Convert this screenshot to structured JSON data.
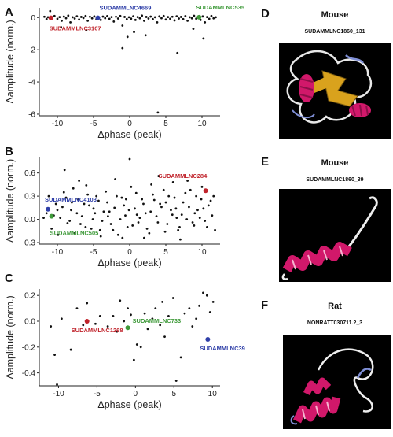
{
  "panels": {
    "A": "A",
    "B": "B",
    "C": "C",
    "D": "D",
    "E": "E",
    "F": "F"
  },
  "colors": {
    "red": "#c0232b",
    "blue": "#2f3fa8",
    "green": "#3f9a3a",
    "point": "#111111"
  },
  "chart_data": [
    {
      "type": "scatter",
      "panel": "A",
      "xlabel": "Δphase (peak)",
      "ylabel": "Δamplitude (norm.)",
      "xlim": [
        -12.5,
        12.5
      ],
      "ylim": [
        -6.1,
        0.6
      ],
      "xticks": [
        "-10",
        "-5",
        "0",
        "5",
        "10"
      ],
      "yticks": [
        "0",
        "-2",
        "-4",
        "-6"
      ],
      "points": [
        [
          -11.8,
          0.05
        ],
        [
          -11.5,
          -0.1
        ],
        [
          -11.3,
          0.02
        ],
        [
          -11.0,
          0.4
        ],
        [
          -10.7,
          -0.05
        ],
        [
          -10.4,
          0.1
        ],
        [
          -10.0,
          -0.08
        ],
        [
          -9.7,
          0.03
        ],
        [
          -9.4,
          -0.2
        ],
        [
          -9.1,
          0.06
        ],
        [
          -8.8,
          -0.04
        ],
        [
          -8.5,
          0.12
        ],
        [
          -8.2,
          -0.3
        ],
        [
          -7.9,
          0.02
        ],
        [
          -7.6,
          -0.06
        ],
        [
          -7.3,
          0.08
        ],
        [
          -7.0,
          -0.12
        ],
        [
          -6.7,
          0.04
        ],
        [
          -6.4,
          -0.03
        ],
        [
          -6.1,
          0.1
        ],
        [
          -5.8,
          -0.2
        ],
        [
          -5.5,
          0.05
        ],
        [
          -5.2,
          -0.05
        ],
        [
          -4.9,
          0.07
        ],
        [
          -4.6,
          -0.1
        ],
        [
          -4.3,
          0.02
        ],
        [
          -4.0,
          -0.15
        ],
        [
          -3.7,
          0.06
        ],
        [
          -3.4,
          -0.04
        ],
        [
          -3.1,
          0.09
        ],
        [
          -2.8,
          -0.08
        ],
        [
          -2.5,
          0.03
        ],
        [
          -2.2,
          -0.25
        ],
        [
          -1.9,
          0.05
        ],
        [
          -1.6,
          -0.06
        ],
        [
          -1.3,
          0.1
        ],
        [
          -1.0,
          -0.5
        ],
        [
          -0.7,
          0.04
        ],
        [
          -0.4,
          -0.1
        ],
        [
          -0.1,
          0.02
        ],
        [
          0.2,
          -0.07
        ],
        [
          0.5,
          0.08
        ],
        [
          0.8,
          -0.15
        ],
        [
          1.1,
          0.03
        ],
        [
          1.4,
          -0.05
        ],
        [
          1.7,
          0.12
        ],
        [
          2.0,
          -0.2
        ],
        [
          2.3,
          0.04
        ],
        [
          2.6,
          -0.06
        ],
        [
          2.9,
          0.06
        ],
        [
          3.2,
          -0.1
        ],
        [
          3.5,
          0.02
        ],
        [
          3.8,
          -0.3
        ],
        [
          4.1,
          0.07
        ],
        [
          4.4,
          -0.04
        ],
        [
          4.7,
          0.1
        ],
        [
          5.0,
          -0.12
        ],
        [
          5.3,
          0.03
        ],
        [
          5.6,
          -0.08
        ],
        [
          5.9,
          0.05
        ],
        [
          6.2,
          -0.18
        ],
        [
          6.5,
          0.08
        ],
        [
          6.8,
          -0.06
        ],
        [
          7.1,
          0.04
        ],
        [
          7.4,
          -0.1
        ],
        [
          7.7,
          0.09
        ],
        [
          8.0,
          -0.2
        ],
        [
          8.3,
          0.02
        ],
        [
          8.6,
          -0.05
        ],
        [
          8.9,
          0.11
        ],
        [
          9.2,
          -0.07
        ],
        [
          9.5,
          0.05
        ],
        [
          9.8,
          -0.15
        ],
        [
          10.1,
          0.07
        ],
        [
          10.4,
          -0.3
        ],
        [
          10.7,
          0.03
        ],
        [
          11.0,
          -0.08
        ],
        [
          11.3,
          0.1
        ],
        [
          11.6,
          -0.05
        ],
        [
          11.9,
          0.02
        ],
        [
          -1.0,
          -1.9
        ],
        [
          -0.3,
          -1.2
        ],
        [
          0.6,
          -0.9
        ],
        [
          3.9,
          -5.9
        ],
        [
          6.6,
          -2.2
        ],
        [
          8.8,
          -0.7
        ],
        [
          -6.0,
          -0.8
        ],
        [
          -9.5,
          -0.6
        ],
        [
          2.2,
          -1.1
        ],
        [
          10.2,
          -1.3
        ]
      ],
      "highlights": [
        {
          "label": "SUDAMMLNC3107",
          "x": -10.9,
          "y": -0.02,
          "color": "red"
        },
        {
          "label": "SUDAMMLNC4669",
          "x": -4.4,
          "y": -0.02,
          "color": "blue"
        },
        {
          "label": "SUDAMMLNC535",
          "x": 9.6,
          "y": 0.02,
          "color": "green"
        }
      ]
    },
    {
      "type": "scatter",
      "panel": "B",
      "xlabel": "Δphase (peak)",
      "ylabel": "Δamplitude (norm.)",
      "xlim": [
        -12.5,
        12.5
      ],
      "ylim": [
        -0.32,
        0.8
      ],
      "xticks": [
        "-10",
        "-5",
        "0",
        "5",
        "10"
      ],
      "yticks": [
        "0.6",
        "0.3",
        "0.0",
        "-0.3"
      ],
      "points": [
        [
          -11.5,
          0.08
        ],
        [
          -10.8,
          -0.12
        ],
        [
          -10.2,
          0.2
        ],
        [
          -9.6,
          0.02
        ],
        [
          -9.1,
          0.35
        ],
        [
          -8.6,
          -0.05
        ],
        [
          -8.1,
          0.12
        ],
        [
          -7.6,
          -0.18
        ],
        [
          -7.1,
          0.26
        ],
        [
          -6.6,
          0.04
        ],
        [
          -6.1,
          -0.1
        ],
        [
          -5.6,
          0.18
        ],
        [
          -5.1,
          0.0
        ],
        [
          -4.6,
          0.3
        ],
        [
          -4.1,
          -0.14
        ],
        [
          -3.6,
          0.1
        ],
        [
          -3.1,
          0.22
        ],
        [
          -2.6,
          -0.06
        ],
        [
          -2.1,
          0.15
        ],
        [
          -1.6,
          -0.2
        ],
        [
          -1.1,
          0.28
        ],
        [
          -0.6,
          0.05
        ],
        [
          -0.1,
          0.12
        ],
        [
          0.4,
          -0.08
        ],
        [
          0.9,
          0.34
        ],
        [
          1.4,
          0.02
        ],
        [
          1.9,
          0.2
        ],
        [
          2.4,
          -0.12
        ],
        [
          2.9,
          0.1
        ],
        [
          3.4,
          0.25
        ],
        [
          3.9,
          -0.04
        ],
        [
          4.4,
          0.16
        ],
        [
          4.9,
          -0.16
        ],
        [
          5.4,
          0.3
        ],
        [
          5.9,
          0.06
        ],
        [
          6.4,
          0.14
        ],
        [
          6.9,
          -0.1
        ],
        [
          7.4,
          0.22
        ],
        [
          7.9,
          0.0
        ],
        [
          8.4,
          0.38
        ],
        [
          8.9,
          -0.08
        ],
        [
          9.4,
          0.12
        ],
        [
          9.9,
          0.26
        ],
        [
          10.4,
          -0.02
        ],
        [
          10.9,
          0.18
        ],
        [
          11.4,
          0.05
        ],
        [
          11.8,
          -0.14
        ],
        [
          -11.2,
          0.3
        ],
        [
          -10.5,
          0.05
        ],
        [
          -9.9,
          -0.2
        ],
        [
          -9.3,
          0.16
        ],
        [
          -8.8,
          0.28
        ],
        [
          -8.3,
          -0.02
        ],
        [
          -7.8,
          0.4
        ],
        [
          -7.3,
          0.08
        ],
        [
          -6.8,
          -0.06
        ],
        [
          -6.3,
          0.2
        ],
        [
          -5.8,
          0.32
        ],
        [
          -5.3,
          -0.12
        ],
        [
          -4.8,
          0.08
        ],
        [
          -4.3,
          0.24
        ],
        [
          -3.8,
          -0.02
        ],
        [
          -3.3,
          0.36
        ],
        [
          -2.8,
          0.1
        ],
        [
          -2.3,
          -0.14
        ],
        [
          -1.8,
          0.3
        ],
        [
          -1.3,
          0.0
        ],
        [
          -0.8,
          0.18
        ],
        [
          -0.3,
          -0.1
        ],
        [
          0.2,
          0.42
        ],
        [
          0.7,
          0.14
        ],
        [
          1.2,
          -0.04
        ],
        [
          1.7,
          0.26
        ],
        [
          2.2,
          0.08
        ],
        [
          2.7,
          -0.18
        ],
        [
          3.2,
          0.32
        ],
        [
          3.7,
          0.04
        ],
        [
          4.2,
          0.2
        ],
        [
          4.7,
          0.38
        ],
        [
          5.2,
          -0.06
        ],
        [
          5.7,
          0.12
        ],
        [
          6.2,
          0.28
        ],
        [
          6.7,
          -0.14
        ],
        [
          7.2,
          0.06
        ],
        [
          7.7,
          0.34
        ],
        [
          8.2,
          0.16
        ],
        [
          8.7,
          -0.04
        ],
        [
          9.2,
          0.3
        ],
        [
          9.7,
          0.02
        ],
        [
          10.2,
          0.14
        ],
        [
          10.7,
          -0.1
        ],
        [
          11.2,
          0.24
        ],
        [
          -10.0,
          0.12
        ],
        [
          -7.0,
          0.5
        ],
        [
          -2.0,
          0.52
        ],
        [
          4.0,
          0.56
        ],
        [
          0.0,
          0.78
        ],
        [
          -9.0,
          0.64
        ],
        [
          6.0,
          0.48
        ],
        [
          8.0,
          0.5
        ],
        [
          -4.0,
          -0.22
        ],
        [
          2.0,
          -0.24
        ],
        [
          7.0,
          -0.26
        ],
        [
          -6.0,
          0.44
        ],
        [
          3.0,
          0.45
        ],
        [
          10.0,
          0.42
        ],
        [
          -1.0,
          -0.24
        ],
        [
          -11.9,
          0.02
        ],
        [
          -8.0,
          0.22
        ],
        [
          -5.0,
          0.14
        ],
        [
          -3.0,
          0.04
        ],
        [
          1.0,
          0.06
        ],
        [
          5.0,
          0.22
        ],
        [
          9.0,
          0.08
        ],
        [
          11.6,
          0.3
        ],
        [
          -0.5,
          0.26
        ],
        [
          6.5,
          0.02
        ]
      ],
      "highlights": [
        {
          "label": "SUDAMMLNC284",
          "x": 10.5,
          "y": 0.37,
          "color": "red"
        },
        {
          "label": "SUDAMMLNC4103",
          "x": -11.3,
          "y": 0.13,
          "color": "blue"
        },
        {
          "label": "SUDAMMLNC505",
          "x": -10.8,
          "y": 0.04,
          "color": "green"
        }
      ]
    },
    {
      "type": "scatter",
      "panel": "C",
      "xlabel": "Δphase (peak)",
      "ylabel": "Δamplitude (norm.)",
      "xlim": [
        -12.5,
        11.0
      ],
      "ylim": [
        -0.5,
        0.25
      ],
      "xticks": [
        "-10",
        "-5",
        "0",
        "5",
        "10"
      ],
      "yticks": [
        "0.2",
        "0.0",
        "-0.2",
        "-0.4"
      ],
      "points": [
        [
          -11.0,
          -0.04
        ],
        [
          -10.5,
          -0.26
        ],
        [
          -10.2,
          -0.49
        ],
        [
          -9.6,
          0.02
        ],
        [
          -7.6,
          0.1
        ],
        [
          -6.8,
          -0.03
        ],
        [
          -6.3,
          0.14
        ],
        [
          -5.2,
          -0.02
        ],
        [
          -4.6,
          0.04
        ],
        [
          -3.6,
          -0.04
        ],
        [
          -2.9,
          0.04
        ],
        [
          -2.4,
          -0.08
        ],
        [
          -2.0,
          0.16
        ],
        [
          -1.5,
          0.0
        ],
        [
          -0.6,
          0.05
        ],
        [
          -0.2,
          -0.3
        ],
        [
          0.2,
          -0.18
        ],
        [
          0.7,
          -0.2
        ],
        [
          1.2,
          0.06
        ],
        [
          1.6,
          -0.06
        ],
        [
          2.2,
          0.02
        ],
        [
          2.6,
          0.1
        ],
        [
          3.2,
          -0.03
        ],
        [
          3.8,
          -0.12
        ],
        [
          4.3,
          0.04
        ],
        [
          4.9,
          0.18
        ],
        [
          5.3,
          -0.46
        ],
        [
          5.9,
          -0.28
        ],
        [
          6.4,
          0.06
        ],
        [
          7.0,
          0.1
        ],
        [
          7.4,
          -0.04
        ],
        [
          7.9,
          0.02
        ],
        [
          8.3,
          0.12
        ],
        [
          8.8,
          0.22
        ],
        [
          9.3,
          0.2
        ],
        [
          9.7,
          0.07
        ],
        [
          10.1,
          0.15
        ],
        [
          -8.4,
          -0.22
        ],
        [
          -1.0,
          0.1
        ],
        [
          3.5,
          0.15
        ]
      ],
      "highlights": [
        {
          "label": "SUDAMMLNC1268",
          "x": -6.3,
          "y": 0.0,
          "color": "red"
        },
        {
          "label": "SUDAMMLNC733",
          "x": -1.0,
          "y": -0.05,
          "color": "green"
        },
        {
          "label": "SUDAMMLNC39",
          "x": 9.4,
          "y": -0.14,
          "color": "blue"
        }
      ]
    }
  ],
  "structures": [
    {
      "panel": "D",
      "title": "Mouse",
      "subtitle": "SUDAMMLNC1860_131"
    },
    {
      "panel": "E",
      "title": "Mouse",
      "subtitle": "SUDAMMLNC1860_39"
    },
    {
      "panel": "F",
      "title": "Rat",
      "subtitle": "NONRATT030711.2_3"
    }
  ]
}
